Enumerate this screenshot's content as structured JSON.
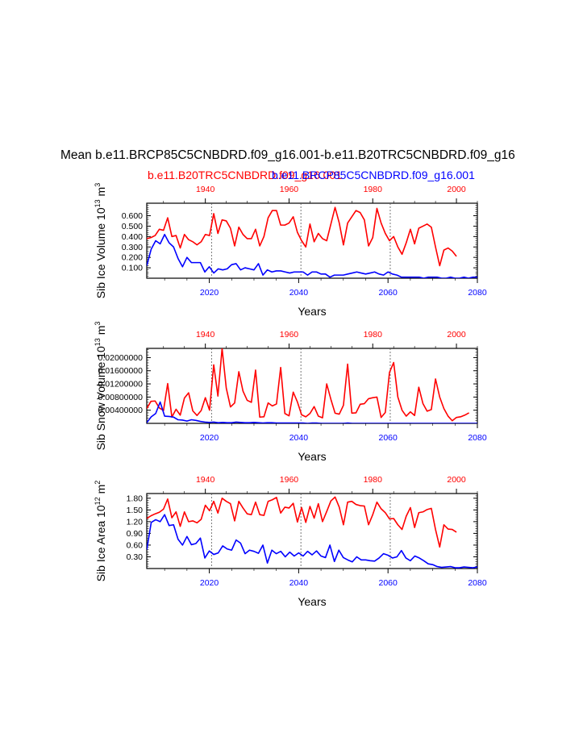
{
  "title": "Mean b.e11.BRCP85C5CNBDRD.f09_g16.001-b.e11.B20TRC5CNBDRD.f09_g16",
  "legend_red": "b.e11.B20TRC5CNBDRD.f09_g16.001",
  "legend_blue": "b.e11.BRCP85C5CNBDRD.f09_g16.001",
  "colors": {
    "red": "#ff0000",
    "blue": "#0000ff",
    "axis": "#000000"
  },
  "chart_data": [
    {
      "type": "line",
      "id": "ice-volume",
      "ylabel": "Sib Ice Volume 10",
      "ylabel_sup": "13",
      "ylabel_unit": " m",
      "ylabel_unit_sup": "3",
      "xlabel": "Years",
      "ylim": [
        0.0,
        0.72
      ],
      "yticks": [
        0.1,
        0.2,
        0.3,
        0.4,
        0.5,
        0.6
      ],
      "ytick_labels": [
        "0.100",
        "0.200",
        "0.300",
        "0.400",
        "0.500",
        "0.600"
      ],
      "bottom_axis": {
        "range": [
          2006,
          2080
        ],
        "ticks": [
          2020,
          2040,
          2060,
          2080
        ],
        "color": "#0000ff"
      },
      "top_axis": {
        "range": [
          1926,
          2005
        ],
        "ticks": [
          1940,
          1960,
          1980,
          2000
        ],
        "color": "#ff0000"
      },
      "dashed_lines": [
        2020.5,
        2040.5,
        2060.5
      ],
      "series": [
        {
          "name": "b.e11.B20TRC5CNBDRD.f09_g16.001",
          "color": "#ff0000",
          "x_start": 1926,
          "values": [
            0.38,
            0.39,
            0.41,
            0.47,
            0.46,
            0.58,
            0.4,
            0.41,
            0.29,
            0.42,
            0.37,
            0.35,
            0.32,
            0.35,
            0.42,
            0.41,
            0.62,
            0.43,
            0.56,
            0.55,
            0.48,
            0.31,
            0.49,
            0.42,
            0.38,
            0.38,
            0.47,
            0.31,
            0.4,
            0.58,
            0.65,
            0.65,
            0.51,
            0.51,
            0.53,
            0.59,
            0.44,
            0.36,
            0.3,
            0.52,
            0.35,
            0.43,
            0.38,
            0.36,
            0.52,
            0.68,
            0.53,
            0.32,
            0.53,
            0.59,
            0.65,
            0.63,
            0.56,
            0.31,
            0.39,
            0.67,
            0.53,
            0.43,
            0.36,
            0.4,
            0.3,
            0.23,
            0.34,
            0.47,
            0.33,
            0.48,
            0.5,
            0.52,
            0.49,
            0.3,
            0.12,
            0.27,
            0.29,
            0.26,
            0.21
          ]
        },
        {
          "name": "b.e11.BRCP85C5CNBDRD.f09_g16.001",
          "color": "#0000ff",
          "x_start": 2006,
          "values": [
            0.12,
            0.28,
            0.36,
            0.33,
            0.42,
            0.34,
            0.3,
            0.19,
            0.11,
            0.2,
            0.15,
            0.15,
            0.15,
            0.06,
            0.11,
            0.05,
            0.09,
            0.08,
            0.09,
            0.13,
            0.14,
            0.08,
            0.1,
            0.09,
            0.08,
            0.14,
            0.03,
            0.08,
            0.06,
            0.07,
            0.07,
            0.06,
            0.05,
            0.06,
            0.06,
            0.06,
            0.03,
            0.06,
            0.06,
            0.04,
            0.04,
            0.01,
            0.03,
            0.03,
            0.03,
            0.04,
            0.05,
            0.06,
            0.05,
            0.04,
            0.05,
            0.06,
            0.04,
            0.03,
            0.06,
            0.04,
            0.03,
            0.01,
            0.01,
            0.01,
            0.01,
            0.01,
            0.0,
            0.01,
            0.01,
            0.01,
            0.0,
            0.0,
            0.01,
            0.0,
            0.0,
            0.01,
            0.0,
            0.01,
            0.01
          ]
        }
      ]
    },
    {
      "type": "line",
      "id": "snow-volume",
      "ylabel": "Sib Snow Volume 10",
      "ylabel_sup": "13",
      "ylabel_unit": " m",
      "ylabel_unit_sup": "3",
      "xlabel": "Years",
      "ylim": [
        0.0,
        0.0228
      ],
      "yticks": [
        0.004,
        0.008,
        0.012,
        0.016,
        0.02
      ],
      "ytick_labels": [
        "0.00400000",
        "0.00800000",
        "0.01200000",
        "0.01600000",
        "0.02000000"
      ],
      "bottom_axis": {
        "range": [
          2006,
          2080
        ],
        "ticks": [
          2020,
          2040,
          2060,
          2080
        ],
        "color": "#0000ff"
      },
      "top_axis": {
        "range": [
          1926,
          2005
        ],
        "ticks": [
          1940,
          1960,
          1980,
          2000
        ],
        "color": "#ff0000"
      },
      "dashed_lines": [
        2020.5,
        2040.5,
        2060.5
      ],
      "series": [
        {
          "name": "b.e11.B20TRC5CNBDRD.f09_g16.001",
          "color": "#ff0000",
          "x_start": 1926,
          "values": [
            0.0045,
            0.0067,
            0.0068,
            0.0047,
            0.0039,
            0.0121,
            0.0019,
            0.0043,
            0.0025,
            0.0077,
            0.0093,
            0.0038,
            0.0024,
            0.0039,
            0.0078,
            0.004,
            0.0178,
            0.0083,
            0.0228,
            0.0107,
            0.005,
            0.0062,
            0.0157,
            0.0098,
            0.007,
            0.0064,
            0.0162,
            0.0019,
            0.002,
            0.0062,
            0.0053,
            0.0059,
            0.017,
            0.003,
            0.0023,
            0.0095,
            0.0065,
            0.0026,
            0.002,
            0.003,
            0.0051,
            0.0022,
            0.0017,
            0.012,
            0.0073,
            0.0031,
            0.0028,
            0.0055,
            0.018,
            0.0031,
            0.0032,
            0.0058,
            0.006,
            0.0075,
            0.0078,
            0.008,
            0.0018,
            0.0033,
            0.0155,
            0.0185,
            0.008,
            0.004,
            0.0022,
            0.0035,
            0.0024,
            0.011,
            0.006,
            0.0037,
            0.0042,
            0.0135,
            0.008,
            0.0045,
            0.0022,
            0.0008,
            0.0018,
            0.002,
            0.0025,
            0.0032
          ]
        },
        {
          "name": "b.e11.BRCP85C5CNBDRD.f09_g16.001",
          "color": "#0000ff",
          "x_start": 2006,
          "values": [
            0.0002,
            0.002,
            0.003,
            0.0065,
            0.0022,
            0.0021,
            0.0019,
            0.0011,
            0.001,
            0.0007,
            0.0011,
            0.0009,
            0.0006,
            0.0004,
            0.0003,
            0.0004,
            0.0002,
            0.0003,
            0.0002,
            0.0002,
            0.0004,
            0.0003,
            0.0002,
            0.0002,
            0.0003,
            0.0002,
            0.0001,
            0.0002,
            0.0002,
            0.0001,
            0.0001,
            0.0001,
            0.0001,
            0.0001,
            0.0001,
            0.0001,
            0.0,
            0.0001,
            0.0001,
            0.0,
            0.0,
            0.0,
            0.0,
            0.0,
            0.0,
            0.0001,
            0.0,
            0.0,
            0.0,
            0.0,
            0.0,
            0.0,
            0.0,
            0.0,
            0.0,
            0.0,
            0.0,
            0.0,
            0.0,
            0.0,
            0.0,
            0.0,
            0.0,
            0.0,
            0.0,
            0.0,
            0.0,
            0.0,
            0.0,
            0.0,
            0.0,
            0.0,
            0.0,
            0.0,
            0.0
          ]
        }
      ]
    },
    {
      "type": "line",
      "id": "ice-area",
      "ylabel": "Sib Ice Area 10",
      "ylabel_sup": "12",
      "ylabel_unit": " m",
      "ylabel_unit_sup": "2",
      "xlabel": "Years",
      "ylim": [
        0.0,
        1.92
      ],
      "yticks": [
        0.3,
        0.6,
        0.9,
        1.2,
        1.5,
        1.8
      ],
      "ytick_labels": [
        "0.30",
        "0.60",
        "0.90",
        "1.20",
        "1.50",
        "1.80"
      ],
      "bottom_axis": {
        "range": [
          2006,
          2080
        ],
        "ticks": [
          2020,
          2040,
          2060,
          2080
        ],
        "color": "#0000ff"
      },
      "top_axis": {
        "range": [
          1926,
          2005
        ],
        "ticks": [
          1940,
          1960,
          1980,
          2000
        ],
        "color": "#ff0000"
      },
      "dashed_lines": [
        2020.5,
        2040.5,
        2060.5
      ],
      "series": [
        {
          "name": "b.e11.B20TRC5CNBDRD.f09_g16.001",
          "color": "#ff0000",
          "x_start": 1926,
          "values": [
            1.28,
            1.35,
            1.4,
            1.44,
            1.52,
            1.78,
            1.3,
            1.45,
            1.08,
            1.45,
            1.2,
            1.22,
            1.17,
            1.26,
            1.62,
            1.48,
            1.72,
            1.42,
            1.8,
            1.72,
            1.66,
            1.22,
            1.72,
            1.55,
            1.4,
            1.38,
            1.7,
            1.38,
            1.36,
            1.72,
            1.76,
            1.82,
            1.42,
            1.57,
            1.55,
            1.67,
            1.19,
            1.56,
            1.18,
            1.59,
            1.29,
            1.66,
            1.2,
            1.46,
            1.73,
            1.83,
            1.57,
            1.12,
            1.7,
            1.72,
            1.64,
            1.61,
            1.6,
            1.12,
            1.38,
            1.7,
            1.53,
            1.43,
            1.27,
            1.28,
            1.12,
            1.0,
            1.34,
            1.56,
            1.05,
            1.43,
            1.45,
            1.51,
            1.54,
            1.0,
            0.55,
            1.12,
            1.01,
            1.0,
            0.93
          ]
        },
        {
          "name": "b.e11.BRCP85C5CNBDRD.f09_g16.001",
          "color": "#0000ff",
          "x_start": 2006,
          "values": [
            0.48,
            1.18,
            1.25,
            1.2,
            1.38,
            1.1,
            1.12,
            0.75,
            0.6,
            0.82,
            0.61,
            0.64,
            0.78,
            0.27,
            0.45,
            0.36,
            0.4,
            0.58,
            0.5,
            0.47,
            0.73,
            0.65,
            0.38,
            0.47,
            0.44,
            0.39,
            0.6,
            0.14,
            0.47,
            0.38,
            0.44,
            0.3,
            0.42,
            0.32,
            0.4,
            0.32,
            0.44,
            0.35,
            0.45,
            0.32,
            0.28,
            0.6,
            0.18,
            0.47,
            0.28,
            0.22,
            0.17,
            0.3,
            0.22,
            0.22,
            0.2,
            0.19,
            0.27,
            0.38,
            0.34,
            0.27,
            0.3,
            0.46,
            0.27,
            0.2,
            0.32,
            0.27,
            0.2,
            0.12,
            0.1,
            0.05,
            0.03,
            0.04,
            0.05,
            0.02,
            0.02,
            0.04,
            0.03,
            0.02,
            0.04
          ]
        }
      ]
    }
  ]
}
